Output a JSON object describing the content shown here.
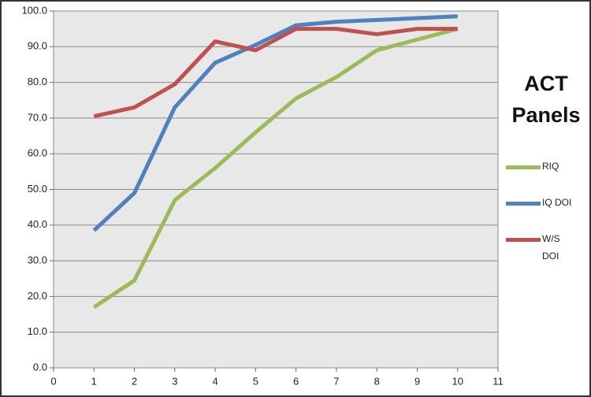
{
  "chart_data": {
    "type": "line",
    "title": "ACT Panels",
    "x": [
      1,
      2,
      3,
      4,
      5,
      6,
      7,
      8,
      9,
      10
    ],
    "series": [
      {
        "name": "RIQ",
        "color": "#9bbb59",
        "values": [
          17,
          24.5,
          47,
          56,
          66,
          75.5,
          81.5,
          89,
          92,
          95
        ]
      },
      {
        "name": "IQ DOI",
        "color": "#4f81bd",
        "values": [
          38.5,
          49,
          73,
          85.5,
          90.5,
          96,
          97,
          97.5,
          98,
          98.5
        ]
      },
      {
        "name": "W/S DOI",
        "color": "#c0504d",
        "values": [
          70.5,
          73,
          79.5,
          91.5,
          89,
          95,
          95,
          93.5,
          95,
          95
        ]
      }
    ],
    "xlim": [
      0,
      11
    ],
    "xticks": [
      0,
      1,
      2,
      3,
      4,
      5,
      6,
      7,
      8,
      9,
      10,
      11
    ],
    "ylim": [
      0,
      100
    ],
    "yticks": [
      {
        "value": 0,
        "label": "0.0"
      },
      {
        "value": 10,
        "label": "10.0"
      },
      {
        "value": 20,
        "label": "20.0"
      },
      {
        "value": 30,
        "label": "30.0"
      },
      {
        "value": 40,
        "label": "40.0"
      },
      {
        "value": 50,
        "label": "50.0"
      },
      {
        "value": 60,
        "label": "60.0"
      },
      {
        "value": 70,
        "label": "70.0"
      },
      {
        "value": 80,
        "label": "80.0"
      },
      {
        "value": 90,
        "label": "90.0"
      },
      {
        "value": 100,
        "label": "100.0"
      }
    ],
    "grid": true
  }
}
